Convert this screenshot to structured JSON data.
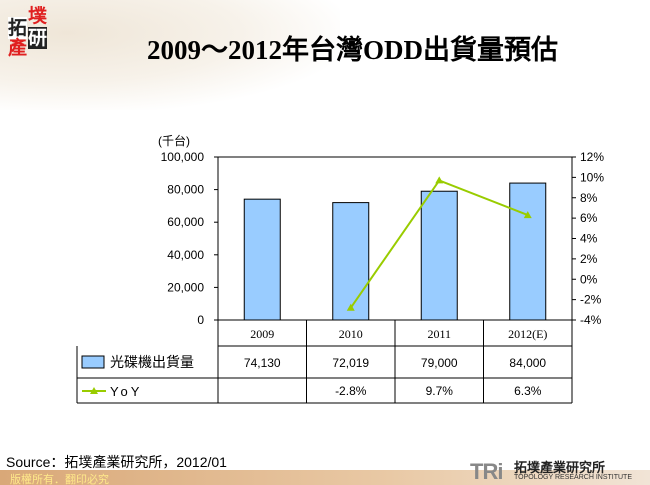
{
  "title": "2009～2012年台灣ODD出貨量預估",
  "logo_text": "拓墣產研",
  "source": "Source：拓墣產業研究所，2012/01",
  "copyright": "版權所有．翻印必究",
  "footer_logo": {
    "mark": "TRi",
    "name": "拓墣產業研究所",
    "english": "TOPOLOGY RESEARCH INSTITUTE"
  },
  "colors": {
    "bar": "#99ccff",
    "line": "#99cc00",
    "footer": "#d9a878"
  },
  "chart_data": {
    "type": "bar+line",
    "y_unit_label": "(千台)",
    "categories": [
      "2009",
      "2010",
      "2011",
      "2012(E)"
    ],
    "ylim": [
      0,
      100000
    ],
    "yticks": [
      "0",
      "20,000",
      "40,000",
      "60,000",
      "80,000",
      "100,000"
    ],
    "y2lim": [
      -4,
      12
    ],
    "y2ticks": [
      "-4%",
      "-2%",
      "0%",
      "2%",
      "4%",
      "6%",
      "8%",
      "10%",
      "12%"
    ],
    "series": [
      {
        "name": "光碟機出貨量",
        "type": "bar",
        "values": [
          74130,
          72019,
          79000,
          84000
        ],
        "labels": [
          "74,130",
          "72,019",
          "79,000",
          "84,000"
        ]
      },
      {
        "name": "YoY",
        "type": "line",
        "axis": "right",
        "values": [
          null,
          -2.8,
          9.7,
          6.3
        ],
        "labels": [
          "",
          "-2.8%",
          "9.7%",
          "6.3%"
        ]
      }
    ],
    "data_table": true
  }
}
